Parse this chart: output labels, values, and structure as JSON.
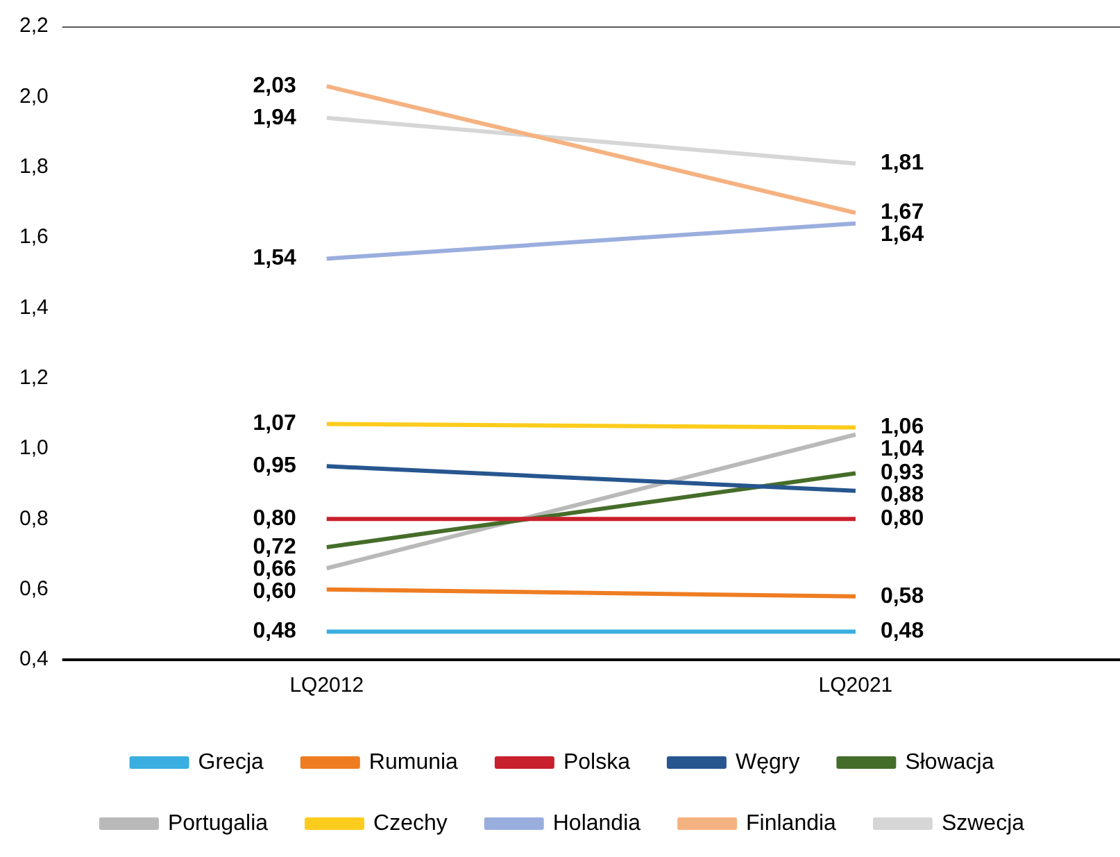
{
  "chart_data": {
    "type": "line",
    "categories": [
      "LQ2012",
      "LQ2021"
    ],
    "ylim": [
      0.4,
      2.2
    ],
    "yticks": [
      {
        "value": 0.4,
        "label": "0,4"
      },
      {
        "value": 0.6,
        "label": "0,6"
      },
      {
        "value": 0.8,
        "label": "0,8"
      },
      {
        "value": 1.0,
        "label": "1,0"
      },
      {
        "value": 1.2,
        "label": "1,2"
      },
      {
        "value": 1.4,
        "label": "1,4"
      },
      {
        "value": 1.6,
        "label": "1,6"
      },
      {
        "value": 1.8,
        "label": "1,8"
      },
      {
        "value": 2.0,
        "label": "2,0"
      },
      {
        "value": 2.2,
        "label": "2,2"
      }
    ],
    "grid": false,
    "legend": "bottom",
    "marker": "none",
    "line_style": "solid",
    "series": [
      {
        "name": "Grecja",
        "color": "#3aaee0",
        "values": [
          0.48,
          0.48
        ],
        "value_labels": [
          "0,48",
          "0,48"
        ]
      },
      {
        "name": "Rumunia",
        "color": "#ee7d22",
        "values": [
          0.6,
          0.58
        ],
        "value_labels": [
          "0,60",
          "0,58"
        ]
      },
      {
        "name": "Polska",
        "color": "#c8202c",
        "values": [
          0.8,
          0.8
        ],
        "value_labels": [
          "0,80",
          "0,80"
        ]
      },
      {
        "name": "Węgry",
        "color": "#27568f",
        "values": [
          0.95,
          0.88
        ],
        "value_labels": [
          "0,95",
          "0,88"
        ]
      },
      {
        "name": "Słowacja",
        "color": "#456d2a",
        "values": [
          0.72,
          0.93
        ],
        "value_labels": [
          "0,72",
          "0,93"
        ]
      },
      {
        "name": "Portugalia",
        "color": "#b9b9b9",
        "values": [
          0.66,
          1.04
        ],
        "value_labels": [
          "0,66",
          "1,04"
        ]
      },
      {
        "name": "Czechy",
        "color": "#fdcc1c",
        "values": [
          1.07,
          1.06
        ],
        "value_labels": [
          "1,07",
          "1,06"
        ]
      },
      {
        "name": "Holandia",
        "color": "#9aaede",
        "values": [
          1.54,
          1.64
        ],
        "value_labels": [
          "1,54",
          "1,64"
        ]
      },
      {
        "name": "Finlandia",
        "color": "#f5b281",
        "values": [
          2.03,
          1.67
        ],
        "value_labels": [
          "2,03",
          "1,67"
        ]
      },
      {
        "name": "Szwecja",
        "color": "#d6d6d6",
        "values": [
          1.94,
          1.81
        ],
        "value_labels": [
          "1,94",
          "1,81"
        ]
      }
    ]
  }
}
